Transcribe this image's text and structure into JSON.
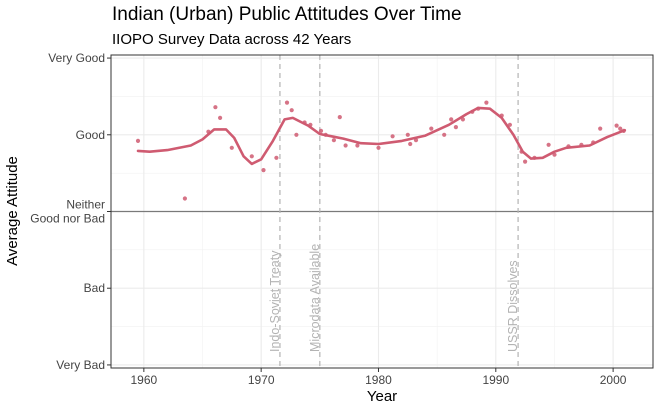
{
  "chart_data": {
    "type": "scatter",
    "title": "Indian (Urban) Public Attitudes Over Time",
    "subtitle": "IIOPO Survey Data across 42 Years",
    "xlabel": "Year",
    "ylabel": "Average Attitude",
    "xlim": [
      1957.2,
      2003.4
    ],
    "ylim": [
      -2.04,
      2.04
    ],
    "x_ticks": [
      1960,
      1970,
      1980,
      1990,
      2000
    ],
    "y_ticks": [
      {
        "value": 2,
        "lines": [
          "Very Good"
        ]
      },
      {
        "value": 1,
        "lines": [
          "Good"
        ]
      },
      {
        "value": 0,
        "lines": [
          "Neither",
          "Good nor Bad"
        ]
      },
      {
        "value": -1,
        "lines": [
          "Bad"
        ]
      },
      {
        "value": -2,
        "lines": [
          "Very Bad"
        ]
      }
    ],
    "reference_line_y": 0,
    "events": [
      {
        "x": 1971.6,
        "label": "Indo-Soviet Treaty"
      },
      {
        "x": 1975.0,
        "label": "Microdata Available"
      },
      {
        "x": 1991.9,
        "label": "USSR Dissolves"
      }
    ],
    "points": [
      [
        1959.5,
        0.92
      ],
      [
        1963.5,
        0.17
      ],
      [
        1965.5,
        1.04
      ],
      [
        1966.1,
        1.36
      ],
      [
        1966.5,
        1.22
      ],
      [
        1967.5,
        0.83
      ],
      [
        1969.2,
        0.72
      ],
      [
        1970.2,
        0.54
      ],
      [
        1971.3,
        0.7
      ],
      [
        1972.2,
        1.42
      ],
      [
        1972.6,
        1.32
      ],
      [
        1973.0,
        1.0
      ],
      [
        1973.7,
        1.16
      ],
      [
        1974.2,
        1.13
      ],
      [
        1975.1,
        1.05
      ],
      [
        1975.5,
        1.0
      ],
      [
        1976.2,
        0.93
      ],
      [
        1976.7,
        1.23
      ],
      [
        1977.2,
        0.86
      ],
      [
        1978.2,
        0.86
      ],
      [
        1980.0,
        0.83
      ],
      [
        1981.2,
        0.98
      ],
      [
        1982.5,
        1.0
      ],
      [
        1982.7,
        0.88
      ],
      [
        1983.2,
        0.93
      ],
      [
        1984.5,
        1.08
      ],
      [
        1985.6,
        1.0
      ],
      [
        1986.2,
        1.2
      ],
      [
        1986.6,
        1.1
      ],
      [
        1987.2,
        1.2
      ],
      [
        1988.0,
        1.3
      ],
      [
        1988.5,
        1.34
      ],
      [
        1989.2,
        1.42
      ],
      [
        1990.5,
        1.25
      ],
      [
        1991.2,
        1.13
      ],
      [
        1992.2,
        0.78
      ],
      [
        1992.5,
        0.65
      ],
      [
        1993.3,
        0.7
      ],
      [
        1994.5,
        0.87
      ],
      [
        1995.0,
        0.74
      ],
      [
        1996.2,
        0.85
      ],
      [
        1997.3,
        0.87
      ],
      [
        1998.3,
        0.9
      ],
      [
        1998.9,
        1.08
      ],
      [
        2000.3,
        1.12
      ],
      [
        2000.6,
        1.08
      ],
      [
        2000.9,
        1.05
      ]
    ],
    "trend": [
      [
        1959.5,
        0.79
      ],
      [
        1960.5,
        0.78
      ],
      [
        1962.0,
        0.8
      ],
      [
        1964.0,
        0.86
      ],
      [
        1965.0,
        0.94
      ],
      [
        1966.0,
        1.07
      ],
      [
        1967.0,
        1.07
      ],
      [
        1967.7,
        0.96
      ],
      [
        1968.5,
        0.72
      ],
      [
        1969.2,
        0.62
      ],
      [
        1970.0,
        0.68
      ],
      [
        1971.0,
        0.92
      ],
      [
        1972.0,
        1.2
      ],
      [
        1972.7,
        1.22
      ],
      [
        1974.0,
        1.12
      ],
      [
        1975.0,
        1.01
      ],
      [
        1976.0,
        0.98
      ],
      [
        1977.0,
        0.95
      ],
      [
        1978.5,
        0.89
      ],
      [
        1980.0,
        0.88
      ],
      [
        1982.0,
        0.92
      ],
      [
        1984.0,
        0.99
      ],
      [
        1986.0,
        1.13
      ],
      [
        1987.5,
        1.27
      ],
      [
        1988.5,
        1.35
      ],
      [
        1989.5,
        1.34
      ],
      [
        1990.5,
        1.22
      ],
      [
        1991.5,
        1.0
      ],
      [
        1992.3,
        0.78
      ],
      [
        1993.0,
        0.69
      ],
      [
        1994.0,
        0.7
      ],
      [
        1995.0,
        0.78
      ],
      [
        1996.0,
        0.83
      ],
      [
        1998.0,
        0.86
      ],
      [
        1999.5,
        0.97
      ],
      [
        2001.0,
        1.06
      ]
    ],
    "series_color": "#cf5b71",
    "grid": true,
    "legend": "none"
  }
}
